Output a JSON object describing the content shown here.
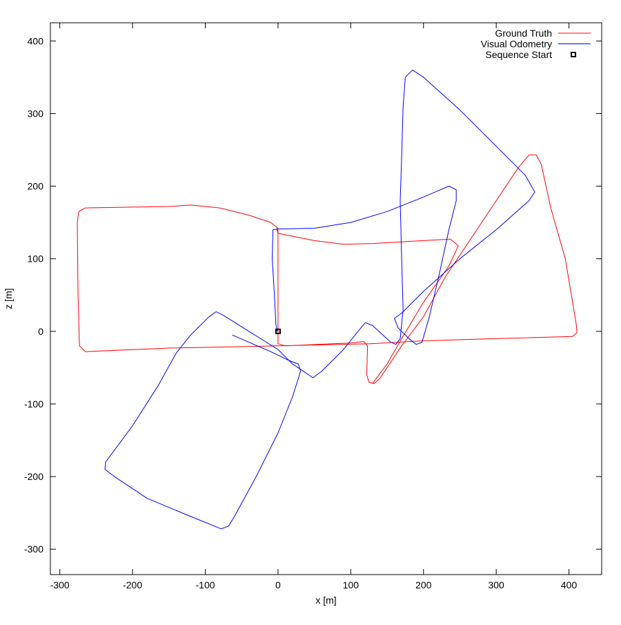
{
  "chart_data": {
    "type": "line",
    "xlabel": "x [m]",
    "ylabel": "z [m]",
    "xlim": [
      -313,
      445
    ],
    "ylim": [
      -335,
      425
    ],
    "xticks": [
      -300,
      -200,
      -100,
      0,
      100,
      200,
      300,
      400
    ],
    "yticks": [
      -300,
      -200,
      -100,
      0,
      100,
      200,
      300,
      400
    ],
    "grid": false,
    "legend_position": "top-right",
    "series": [
      {
        "name": "Ground Truth",
        "color": "#ff0000",
        "points": [
          [
            0,
            0
          ],
          [
            0,
            -17
          ],
          [
            10,
            -20
          ],
          [
            100,
            -16
          ],
          [
            118,
            -14
          ],
          [
            123,
            -20
          ],
          [
            122,
            -60
          ],
          [
            125,
            -70
          ],
          [
            132,
            -72
          ],
          [
            140,
            -65
          ],
          [
            170,
            -20
          ],
          [
            200,
            20
          ],
          [
            230,
            75
          ],
          [
            280,
            150
          ],
          [
            330,
            225
          ],
          [
            345,
            243
          ],
          [
            355,
            243
          ],
          [
            362,
            230
          ],
          [
            375,
            170
          ],
          [
            395,
            100
          ],
          [
            410,
            10
          ],
          [
            411,
            -2
          ],
          [
            405,
            -7
          ],
          [
            300,
            -10
          ],
          [
            200,
            -13
          ],
          [
            127,
            -17
          ],
          [
            0,
            -20
          ],
          [
            -150,
            -23
          ],
          [
            -265,
            -28
          ],
          [
            -273,
            -20
          ],
          [
            -275,
            50
          ],
          [
            -276,
            150
          ],
          [
            -274,
            165
          ],
          [
            -265,
            170
          ],
          [
            -150,
            172
          ],
          [
            -120,
            174
          ],
          [
            -80,
            170
          ],
          [
            -40,
            160
          ],
          [
            -10,
            150
          ],
          [
            0,
            142
          ],
          [
            0,
            120
          ],
          [
            0,
            80
          ],
          [
            0,
            0
          ]
        ]
      },
      {
        "name": "Ground Truth",
        "color": "#ff0000",
        "points": [
          [
            -2,
            142
          ],
          [
            0,
            135
          ],
          [
            50,
            125
          ],
          [
            90,
            120
          ],
          [
            130,
            121
          ],
          [
            200,
            125
          ],
          [
            237,
            127
          ],
          [
            248,
            118
          ],
          [
            235,
            90
          ],
          [
            200,
            40
          ],
          [
            170,
            -10
          ],
          [
            150,
            -45
          ],
          [
            135,
            -65
          ],
          [
            130,
            -72
          ]
        ]
      },
      {
        "name": "Visual Odometry",
        "color": "#0000ff",
        "points": [
          [
            -63,
            -5
          ],
          [
            -40,
            -15
          ],
          [
            -10,
            -28
          ],
          [
            15,
            -40
          ],
          [
            28,
            -45
          ],
          [
            31,
            -55
          ],
          [
            20,
            -90
          ],
          [
            0,
            -140
          ],
          [
            -30,
            -200
          ],
          [
            -60,
            -255
          ],
          [
            -68,
            -268
          ],
          [
            -78,
            -272
          ],
          [
            -120,
            -255
          ],
          [
            -180,
            -230
          ],
          [
            -225,
            -200
          ],
          [
            -238,
            -190
          ],
          [
            -237,
            -180
          ],
          [
            -200,
            -130
          ],
          [
            -165,
            -75
          ],
          [
            -140,
            -30
          ],
          [
            -120,
            -5
          ],
          [
            -95,
            20
          ],
          [
            -85,
            27
          ],
          [
            -75,
            22
          ],
          [
            -40,
            0
          ],
          [
            0,
            -25
          ],
          [
            20,
            -45
          ],
          [
            35,
            -55
          ],
          [
            48,
            -64
          ],
          [
            60,
            -55
          ],
          [
            90,
            -25
          ],
          [
            110,
            0
          ],
          [
            120,
            12
          ],
          [
            130,
            8
          ],
          [
            155,
            -15
          ],
          [
            162,
            -18
          ],
          [
            168,
            -10
          ],
          [
            172,
            30
          ],
          [
            170,
            100
          ],
          [
            168,
            180
          ],
          [
            170,
            240
          ],
          [
            172,
            310
          ],
          [
            175,
            350
          ],
          [
            185,
            360
          ],
          [
            200,
            350
          ],
          [
            250,
            305
          ],
          [
            300,
            255
          ],
          [
            340,
            215
          ],
          [
            353,
            192
          ],
          [
            345,
            180
          ],
          [
            300,
            140
          ],
          [
            250,
            100
          ],
          [
            200,
            55
          ],
          [
            170,
            25
          ],
          [
            160,
            18
          ],
          [
            165,
            5
          ],
          [
            180,
            -10
          ],
          [
            190,
            -18
          ],
          [
            198,
            -15
          ],
          [
            208,
            20
          ],
          [
            222,
            80
          ],
          [
            235,
            140
          ],
          [
            245,
            180
          ],
          [
            245,
            195
          ],
          [
            235,
            200
          ],
          [
            200,
            185
          ],
          [
            150,
            165
          ],
          [
            100,
            150
          ],
          [
            50,
            142
          ],
          [
            0,
            141
          ],
          [
            -7,
            140
          ],
          [
            -8,
            100
          ],
          [
            -5,
            50
          ],
          [
            -3,
            10
          ],
          [
            -1,
            0
          ]
        ]
      }
    ],
    "markers": [
      {
        "name": "Sequence Start",
        "x": 0,
        "z": 0,
        "shape": "square"
      }
    ]
  }
}
